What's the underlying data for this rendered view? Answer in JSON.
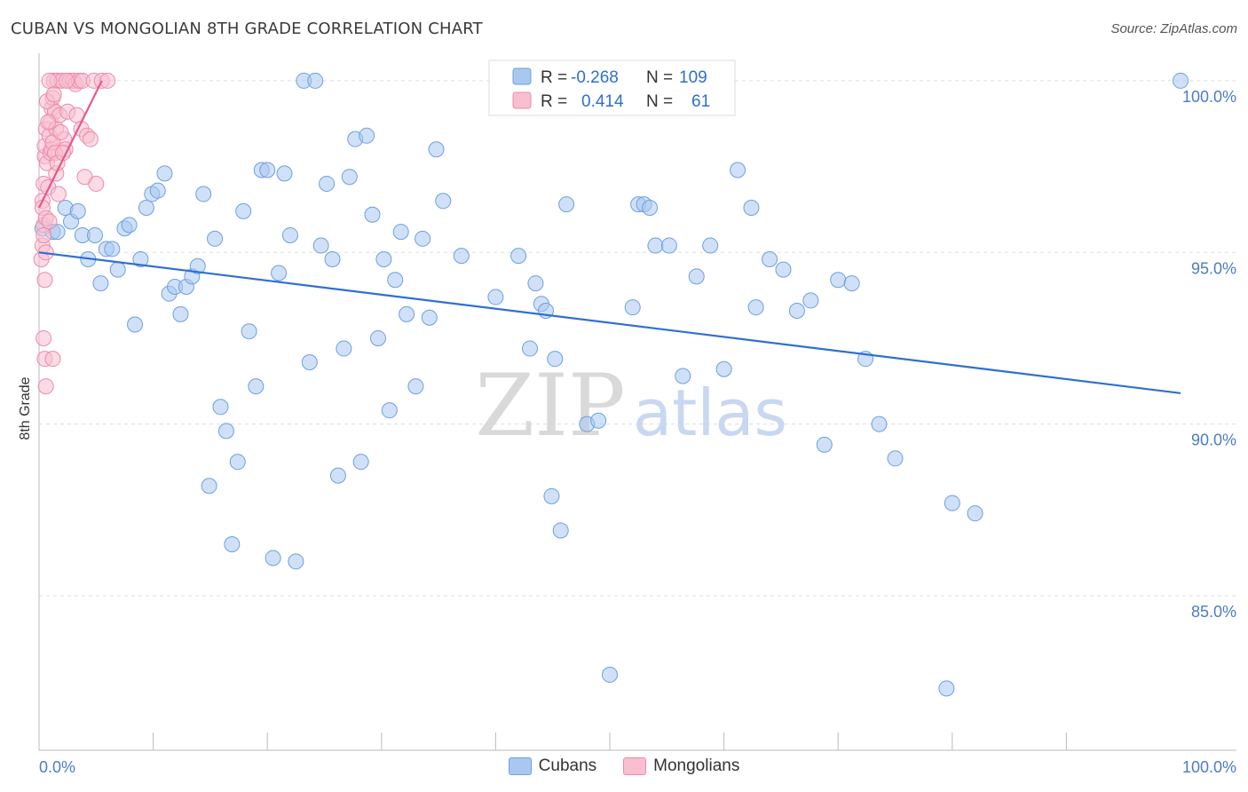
{
  "title": "CUBAN VS MONGOLIAN 8TH GRADE CORRELATION CHART",
  "source": "Source: ZipAtlas.com",
  "watermark": {
    "zip": "ZIP",
    "atlas": "atlas"
  },
  "colors": {
    "cubans_fill": "#a9c8f0",
    "cubans_stroke": "#6d9fe0",
    "cubans_line": "#2e6fd1",
    "mongolians_fill": "#f8bfd0",
    "mongolians_stroke": "#ec8aab",
    "mongolians_line": "#e8568a",
    "axis_text": "#4a7cc7",
    "grid": "#dddddd"
  },
  "legend": {
    "rows": [
      {
        "r_label": "R =",
        "r_value": "-0.268",
        "n_label": "N =",
        "n_value": "109"
      },
      {
        "r_label": "R =",
        "r_value": "0.414",
        "n_label": "N =",
        "n_value": "61"
      }
    ]
  },
  "bottom_legend": {
    "cubans": "Cubans",
    "mongolians": "Mongolians"
  },
  "chart_data": {
    "type": "scatter",
    "ylabel": "8th Grade",
    "xlabel": "",
    "xlim": [
      0,
      100
    ],
    "ylim": [
      80.5,
      100.8
    ],
    "x_tick_labels": [
      "0.0%",
      "100.0%"
    ],
    "y_ticks": [
      85,
      90,
      95,
      100
    ],
    "y_tick_labels": [
      "85.0%",
      "90.0%",
      "95.0%",
      "100.0%"
    ],
    "grid": true,
    "series": [
      {
        "name": "Cubans",
        "trend": {
          "x": [
            0,
            100
          ],
          "y": [
            95.0,
            90.9
          ]
        },
        "points": [
          [
            0.3,
            95.7
          ],
          [
            1.2,
            95.6
          ],
          [
            1.6,
            95.6
          ],
          [
            2.3,
            96.3
          ],
          [
            2.8,
            95.9
          ],
          [
            3.4,
            96.2
          ],
          [
            3.8,
            95.5
          ],
          [
            4.3,
            94.8
          ],
          [
            4.9,
            95.5
          ],
          [
            5.4,
            94.1
          ],
          [
            5.9,
            95.1
          ],
          [
            6.4,
            95.1
          ],
          [
            6.9,
            94.5
          ],
          [
            7.5,
            95.7
          ],
          [
            7.9,
            95.8
          ],
          [
            8.4,
            92.9
          ],
          [
            8.9,
            94.8
          ],
          [
            9.4,
            96.3
          ],
          [
            9.9,
            96.7
          ],
          [
            10.4,
            96.8
          ],
          [
            11.0,
            97.3
          ],
          [
            11.4,
            93.8
          ],
          [
            11.9,
            94.0
          ],
          [
            12.4,
            93.2
          ],
          [
            12.9,
            94.0
          ],
          [
            13.4,
            94.3
          ],
          [
            13.9,
            94.6
          ],
          [
            14.4,
            96.7
          ],
          [
            14.9,
            88.2
          ],
          [
            15.4,
            95.4
          ],
          [
            15.9,
            90.5
          ],
          [
            16.4,
            89.8
          ],
          [
            16.9,
            86.5
          ],
          [
            17.4,
            88.9
          ],
          [
            17.9,
            96.2
          ],
          [
            18.4,
            92.7
          ],
          [
            19.0,
            91.1
          ],
          [
            19.5,
            97.4
          ],
          [
            20.0,
            97.4
          ],
          [
            20.5,
            86.1
          ],
          [
            21.0,
            94.4
          ],
          [
            21.5,
            97.3
          ],
          [
            22.0,
            95.5
          ],
          [
            22.5,
            86.0
          ],
          [
            23.2,
            100.0
          ],
          [
            23.7,
            91.8
          ],
          [
            24.2,
            100.0
          ],
          [
            24.7,
            95.2
          ],
          [
            25.2,
            97.0
          ],
          [
            25.7,
            94.8
          ],
          [
            26.2,
            88.5
          ],
          [
            26.7,
            92.2
          ],
          [
            27.2,
            97.2
          ],
          [
            27.7,
            98.3
          ],
          [
            28.2,
            88.9
          ],
          [
            28.7,
            98.4
          ],
          [
            29.2,
            96.1
          ],
          [
            29.7,
            92.5
          ],
          [
            30.2,
            94.8
          ],
          [
            30.7,
            90.4
          ],
          [
            31.2,
            94.2
          ],
          [
            31.7,
            95.6
          ],
          [
            32.2,
            93.2
          ],
          [
            33.0,
            91.1
          ],
          [
            33.6,
            95.4
          ],
          [
            34.2,
            93.1
          ],
          [
            34.8,
            98.0
          ],
          [
            35.4,
            96.5
          ],
          [
            37.0,
            94.9
          ],
          [
            40.0,
            93.7
          ],
          [
            42.0,
            94.9
          ],
          [
            43.0,
            92.2
          ],
          [
            43.5,
            94.1
          ],
          [
            44.0,
            93.5
          ],
          [
            44.4,
            93.3
          ],
          [
            44.9,
            87.9
          ],
          [
            45.2,
            91.9
          ],
          [
            45.7,
            86.9
          ],
          [
            46.2,
            96.4
          ],
          [
            48.0,
            90.0
          ],
          [
            49.0,
            90.1
          ],
          [
            50.0,
            82.7
          ],
          [
            52.0,
            93.4
          ],
          [
            52.5,
            96.4
          ],
          [
            53.0,
            96.4
          ],
          [
            53.5,
            96.3
          ],
          [
            54.0,
            95.2
          ],
          [
            55.2,
            95.2
          ],
          [
            56.4,
            91.4
          ],
          [
            57.6,
            94.3
          ],
          [
            58.8,
            95.2
          ],
          [
            60.0,
            91.6
          ],
          [
            61.2,
            97.4
          ],
          [
            62.4,
            96.3
          ],
          [
            62.8,
            93.4
          ],
          [
            64.0,
            94.8
          ],
          [
            65.2,
            94.5
          ],
          [
            66.4,
            93.3
          ],
          [
            67.6,
            93.6
          ],
          [
            68.8,
            89.4
          ],
          [
            70.0,
            94.2
          ],
          [
            71.2,
            94.1
          ],
          [
            72.4,
            91.9
          ],
          [
            73.6,
            90.0
          ],
          [
            75.0,
            89.0
          ],
          [
            80.0,
            87.7
          ],
          [
            82.0,
            87.4
          ],
          [
            79.5,
            82.3
          ],
          [
            100.0,
            100.0
          ]
        ]
      },
      {
        "name": "Mongolians",
        "trend": {
          "x": [
            0,
            5.5
          ],
          "y": [
            96.3,
            100.0
          ]
        },
        "points": [
          [
            0.2,
            94.8
          ],
          [
            0.3,
            95.2
          ],
          [
            0.4,
            95.8
          ],
          [
            0.3,
            96.5
          ],
          [
            0.4,
            97.0
          ],
          [
            0.5,
            97.8
          ],
          [
            0.5,
            98.1
          ],
          [
            0.6,
            98.6
          ],
          [
            0.3,
            96.3
          ],
          [
            0.6,
            96.0
          ],
          [
            0.4,
            95.5
          ],
          [
            0.5,
            94.2
          ],
          [
            0.4,
            92.5
          ],
          [
            0.5,
            91.9
          ],
          [
            0.6,
            91.1
          ],
          [
            0.7,
            97.6
          ],
          [
            0.8,
            96.9
          ],
          [
            0.9,
            98.4
          ],
          [
            1.0,
            98.8
          ],
          [
            1.1,
            99.2
          ],
          [
            1.2,
            99.5
          ],
          [
            1.3,
            100.0
          ],
          [
            1.4,
            99.1
          ],
          [
            1.5,
            98.6
          ],
          [
            1.6,
            100.0
          ],
          [
            1.8,
            99.0
          ],
          [
            2.0,
            100.0
          ],
          [
            2.2,
            98.3
          ],
          [
            2.3,
            98.0
          ],
          [
            2.5,
            99.1
          ],
          [
            2.7,
            100.0
          ],
          [
            3.0,
            100.0
          ],
          [
            3.2,
            99.9
          ],
          [
            3.3,
            99.0
          ],
          [
            3.5,
            100.0
          ],
          [
            3.7,
            98.6
          ],
          [
            3.8,
            100.0
          ],
          [
            4.0,
            97.2
          ],
          [
            4.2,
            98.4
          ],
          [
            4.5,
            98.3
          ],
          [
            4.8,
            100.0
          ],
          [
            5.0,
            97.0
          ],
          [
            5.5,
            100.0
          ],
          [
            6.0,
            100.0
          ],
          [
            1.0,
            97.9
          ],
          [
            1.1,
            98.0
          ],
          [
            1.2,
            98.2
          ],
          [
            1.4,
            97.9
          ],
          [
            1.5,
            97.3
          ],
          [
            1.7,
            96.7
          ],
          [
            0.7,
            99.4
          ],
          [
            0.9,
            100.0
          ],
          [
            0.8,
            98.8
          ],
          [
            1.3,
            99.6
          ],
          [
            1.6,
            97.6
          ],
          [
            2.1,
            97.9
          ],
          [
            0.6,
            95.0
          ],
          [
            0.9,
            95.9
          ],
          [
            1.2,
            91.9
          ],
          [
            2.4,
            100.0
          ],
          [
            1.9,
            98.5
          ]
        ]
      }
    ]
  }
}
